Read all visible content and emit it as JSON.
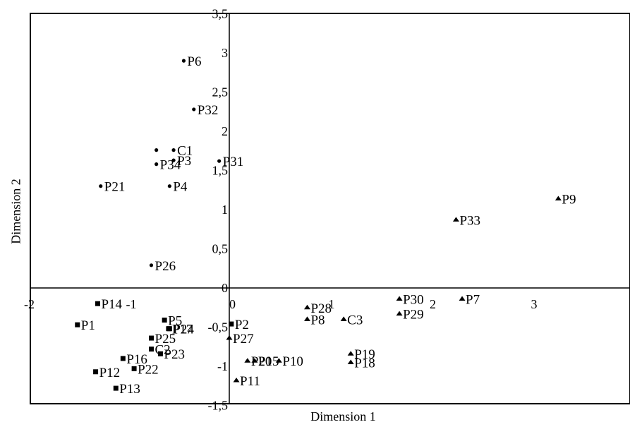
{
  "chart_data": {
    "type": "scatter",
    "xlabel": "Dimension 1",
    "ylabel": "Dimension 2",
    "xlim": [
      -2,
      4
    ],
    "ylim": [
      -1.5,
      3.5
    ],
    "x_ticks": [
      {
        "v": -2,
        "label": "-2"
      },
      {
        "v": -1,
        "label": "-1"
      },
      {
        "v": 0,
        "label": "0"
      },
      {
        "v": 1,
        "label": "1"
      },
      {
        "v": 2,
        "label": "2"
      },
      {
        "v": 3,
        "label": "3"
      }
    ],
    "y_ticks": [
      {
        "v": -1.5,
        "label": "-1,5"
      },
      {
        "v": -1,
        "label": "-1"
      },
      {
        "v": -0.5,
        "label": "-0,5"
      },
      {
        "v": 0,
        "label": "0"
      },
      {
        "v": 0.5,
        "label": "0,5"
      },
      {
        "v": 1,
        "label": "1"
      },
      {
        "v": 1.5,
        "label": "1,5"
      },
      {
        "v": 2,
        "label": "2"
      },
      {
        "v": 2.5,
        "label": "2,5"
      },
      {
        "v": 3,
        "label": "3"
      },
      {
        "v": 3.5,
        "label": "3,5"
      }
    ],
    "grid": false,
    "series": [
      {
        "marker": "circle",
        "points": [
          {
            "label": "P6",
            "x": -0.45,
            "y": 2.9
          },
          {
            "label": "P32",
            "x": -0.35,
            "y": 2.28
          },
          {
            "label": "C1",
            "x": -0.55,
            "y": 1.76
          },
          {
            "label": "",
            "x": -0.72,
            "y": 1.76
          },
          {
            "label": "P34",
            "x": -0.72,
            "y": 1.58
          },
          {
            "label": "P3",
            "x": -0.55,
            "y": 1.63
          },
          {
            "label": "P31",
            "x": -0.1,
            "y": 1.62
          },
          {
            "label": "P21",
            "x": -1.27,
            "y": 1.3
          },
          {
            "label": "P4",
            "x": -0.59,
            "y": 1.3
          },
          {
            "label": "P26",
            "x": -0.77,
            "y": 0.29
          }
        ]
      },
      {
        "marker": "square",
        "points": [
          {
            "label": "P14",
            "x": -1.3,
            "y": -0.2
          },
          {
            "label": "P1",
            "x": -1.5,
            "y": -0.47
          },
          {
            "label": "P5",
            "x": -0.64,
            "y": -0.41
          },
          {
            "label": "P17",
            "x": -0.6,
            "y": -0.52
          },
          {
            "label": "P24",
            "x": -0.59,
            "y": -0.52
          },
          {
            "label": "P25",
            "x": -0.77,
            "y": -0.64
          },
          {
            "label": "C2",
            "x": -0.77,
            "y": -0.78
          },
          {
            "label": "P16",
            "x": -1.05,
            "y": -0.9
          },
          {
            "label": "P23",
            "x": -0.68,
            "y": -0.84
          },
          {
            "label": "P22",
            "x": -0.94,
            "y": -1.03
          },
          {
            "label": "P12",
            "x": -1.32,
            "y": -1.07
          },
          {
            "label": "P13",
            "x": -1.12,
            "y": -1.28
          },
          {
            "label": "P2",
            "x": 0.02,
            "y": -0.46
          }
        ]
      },
      {
        "marker": "triangle",
        "points": [
          {
            "label": "P9",
            "x": 3.25,
            "y": 1.14
          },
          {
            "label": "P33",
            "x": 2.24,
            "y": 0.87
          },
          {
            "label": "P7",
            "x": 2.3,
            "y": -0.14
          },
          {
            "label": "P30",
            "x": 1.68,
            "y": -0.14
          },
          {
            "label": "P29",
            "x": 1.68,
            "y": -0.33
          },
          {
            "label": "P28",
            "x": 0.77,
            "y": -0.25
          },
          {
            "label": "P8",
            "x": 0.77,
            "y": -0.4
          },
          {
            "label": "C3",
            "x": 1.13,
            "y": -0.4
          },
          {
            "label": "P27",
            "x": 0.0,
            "y": -0.64
          },
          {
            "label": "P19",
            "x": 1.2,
            "y": -0.84
          },
          {
            "label": "P18",
            "x": 1.2,
            "y": -0.95
          },
          {
            "label": "P20",
            "x": 0.18,
            "y": -0.93
          },
          {
            "label": "P15",
            "x": 0.25,
            "y": -0.93
          },
          {
            "label": "P10",
            "x": 0.49,
            "y": -0.93
          },
          {
            "label": "P11",
            "x": 0.07,
            "y": -1.18
          }
        ]
      }
    ]
  }
}
